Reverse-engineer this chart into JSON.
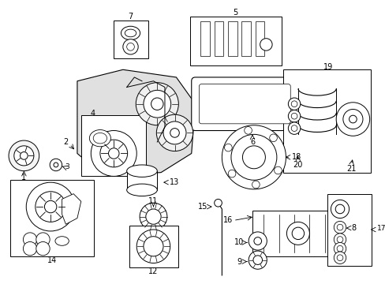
{
  "bg_color": "#ffffff",
  "line_color": "#000000",
  "shaded_fill": "#e8e8e8",
  "parts_layout": {
    "fig_w": 4.89,
    "fig_h": 3.6,
    "dpi": 100
  }
}
